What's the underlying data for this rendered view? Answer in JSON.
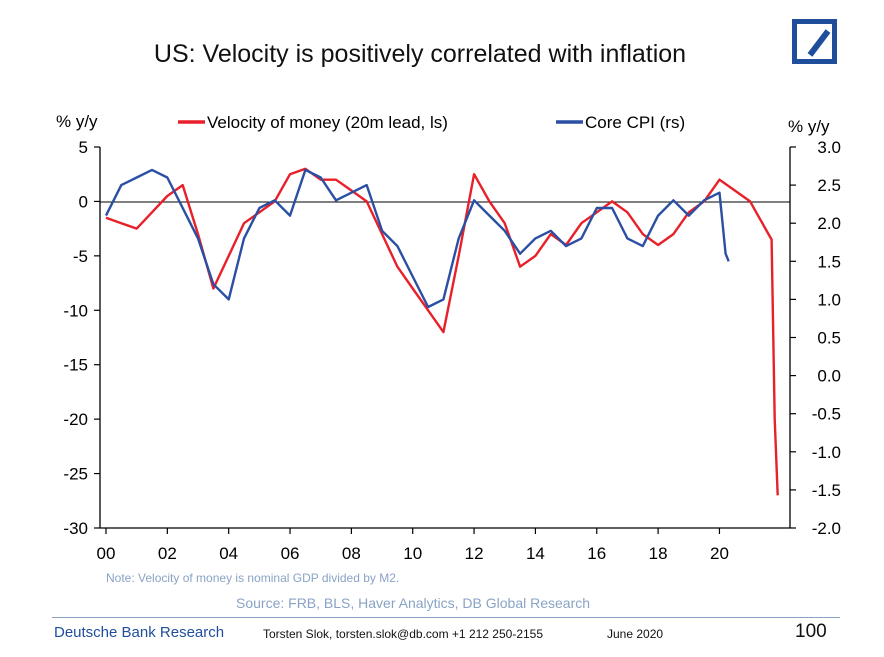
{
  "page": {
    "title": "US: Velocity is positively correlated with inflation",
    "note": "Note: Velocity of money is nominal GDP divided by M2.",
    "source": "Source: FRB, BLS, Haver Analytics, DB Global Research",
    "footer": {
      "brand": "Deutsche Bank Research",
      "contact": "Torsten Slok, torsten.slok@db.com  +1 212 250-2155",
      "date": "June 2020",
      "page_number": "100"
    },
    "logo_icon": "deutsche-bank-logo"
  },
  "chart_data": {
    "type": "line",
    "title": "US: Velocity is positively correlated with inflation",
    "left_axis": {
      "unit_label": "% y/y",
      "range": [
        -30,
        5
      ],
      "ticks": [
        5,
        0,
        -5,
        -10,
        -15,
        -20,
        -25,
        -30
      ],
      "tick_labels": [
        "5",
        "0",
        "-5",
        "-10",
        "-15",
        "-20",
        "-25",
        "-30"
      ]
    },
    "right_axis": {
      "unit_label": "% y/y",
      "range": [
        -2.0,
        3.0
      ],
      "ticks": [
        3.0,
        2.5,
        2.0,
        1.5,
        1.0,
        0.5,
        0.0,
        -0.5,
        -1.0,
        -1.5,
        -2.0
      ],
      "tick_labels": [
        "3.0",
        "2.5",
        "2.0",
        "1.5",
        "1.0",
        "0.5",
        "0.0",
        "-0.5",
        "-1.0",
        "-1.5",
        "-2.0"
      ]
    },
    "x_axis": {
      "range": [
        2000,
        2022.3
      ],
      "ticks": [
        2000,
        2002,
        2004,
        2006,
        2008,
        2010,
        2012,
        2014,
        2016,
        2018,
        2020
      ],
      "tick_labels": [
        "00",
        "02",
        "04",
        "06",
        "08",
        "10",
        "12",
        "14",
        "16",
        "18",
        "20"
      ]
    },
    "zero_line": true,
    "grid": false,
    "legend_position": "top",
    "series": [
      {
        "name": "Velocity of money (20m lead, ls)",
        "axis": "left",
        "color": "#e8202a",
        "x": [
          2000.0,
          2000.5,
          2001.0,
          2001.5,
          2002.0,
          2002.5,
          2003.0,
          2003.5,
          2004.0,
          2004.5,
          2005.0,
          2005.5,
          2006.0,
          2006.5,
          2007.0,
          2007.5,
          2008.0,
          2008.5,
          2009.0,
          2009.5,
          2010.0,
          2010.5,
          2011.0,
          2011.5,
          2012.0,
          2012.5,
          2013.0,
          2013.5,
          2014.0,
          2014.5,
          2015.0,
          2015.5,
          2016.0,
          2016.5,
          2017.0,
          2017.5,
          2018.0,
          2018.5,
          2019.0,
          2019.5,
          2020.0,
          2020.5,
          2021.0,
          2021.3,
          2021.6,
          2021.7,
          2021.8,
          2021.9
        ],
        "values": [
          -1.5,
          -2.0,
          -2.5,
          -1.0,
          0.5,
          1.5,
          -3.0,
          -8.0,
          -5.0,
          -2.0,
          -1.0,
          0.0,
          2.5,
          3.0,
          2.0,
          2.0,
          1.0,
          0.0,
          -3.0,
          -6.0,
          -8.0,
          -10.0,
          -12.0,
          -5.0,
          2.5,
          0.0,
          -2.0,
          -6.0,
          -5.0,
          -3.0,
          -4.0,
          -2.0,
          -1.0,
          0.0,
          -1.0,
          -3.0,
          -4.0,
          -3.0,
          -1.0,
          0.0,
          2.0,
          1.0,
          0.0,
          -1.5,
          -3.0,
          -3.5,
          -20.0,
          -27.0
        ]
      },
      {
        "name": "Core CPI (rs)",
        "axis": "right",
        "color": "#2a4fa3",
        "x": [
          2000.0,
          2000.5,
          2001.0,
          2001.5,
          2002.0,
          2002.5,
          2003.0,
          2003.5,
          2004.0,
          2004.5,
          2005.0,
          2005.5,
          2006.0,
          2006.5,
          2007.0,
          2007.5,
          2008.0,
          2008.5,
          2009.0,
          2009.5,
          2010.0,
          2010.5,
          2011.0,
          2011.5,
          2012.0,
          2012.5,
          2013.0,
          2013.5,
          2014.0,
          2014.5,
          2015.0,
          2015.5,
          2016.0,
          2016.5,
          2017.0,
          2017.5,
          2018.0,
          2018.5,
          2019.0,
          2019.5,
          2020.0,
          2020.2,
          2020.3
        ],
        "values": [
          2.1,
          2.5,
          2.6,
          2.7,
          2.6,
          2.2,
          1.8,
          1.2,
          1.0,
          1.8,
          2.2,
          2.3,
          2.1,
          2.7,
          2.6,
          2.3,
          2.4,
          2.5,
          1.9,
          1.7,
          1.3,
          0.9,
          1.0,
          1.8,
          2.3,
          2.1,
          1.9,
          1.6,
          1.8,
          1.9,
          1.7,
          1.8,
          2.2,
          2.2,
          1.8,
          1.7,
          2.1,
          2.3,
          2.1,
          2.3,
          2.4,
          1.6,
          1.5
        ]
      }
    ]
  }
}
